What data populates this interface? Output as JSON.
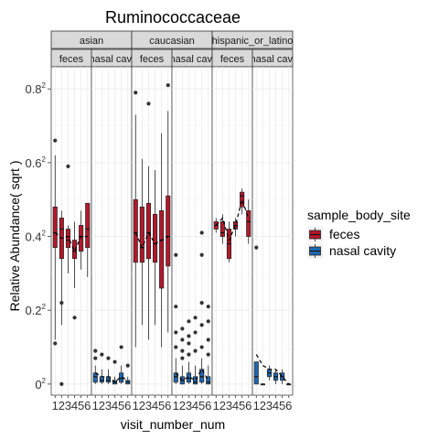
{
  "chart_data": {
    "type": "box",
    "title": "Ruminococcaceae",
    "xlabel": "visit_number_num",
    "ylabel": "Relative Abundance( sqrt )",
    "y_ticks": [
      {
        "value": 0.0,
        "base": "0",
        "exp": "2"
      },
      {
        "value": 0.2,
        "base": "0.2",
        "exp": "2"
      },
      {
        "value": 0.4,
        "base": "0.4",
        "exp": "2"
      },
      {
        "value": 0.6,
        "base": "0.6",
        "exp": "2"
      },
      {
        "value": 0.8,
        "base": "0.8",
        "exp": "2"
      }
    ],
    "ylim": [
      -0.03,
      0.86
    ],
    "x_categories": [
      "1",
      "2",
      "3",
      "4",
      "5",
      "6"
    ],
    "legend": {
      "title": "sample_body_site",
      "placement": "right",
      "items": [
        {
          "label": "feces",
          "color": "#b2182b"
        },
        {
          "label": "nasal cavity",
          "color": "#2166ac"
        }
      ]
    },
    "facet_rows": [
      "asian",
      "caucasian",
      "hispanic_or_latino"
    ],
    "facet_cols_display": [
      "feces",
      "nasal cavity"
    ],
    "facets": [
      {
        "ethnicity": "asian",
        "ethnicity_label": "asian",
        "panels": [
          {
            "site": "feces",
            "label": "feces",
            "color": "#b2182b",
            "trend": [
              0.41,
              0.395,
              0.4,
              0.36,
              0.4,
              0.4
            ],
            "boxes": [
              {
                "visit": 1,
                "min": 0.12,
                "q1": 0.37,
                "median": 0.41,
                "q3": 0.48,
                "max": 0.62,
                "outliers": [
                  0.66,
                  0.11
                ]
              },
              {
                "visit": 2,
                "min": 0.16,
                "q1": 0.34,
                "median": 0.42,
                "q3": 0.45,
                "max": 0.47,
                "outliers": [
                  0.22,
                  0.0
                ]
              },
              {
                "visit": 3,
                "min": 0.3,
                "q1": 0.37,
                "median": 0.39,
                "q3": 0.42,
                "max": 0.43,
                "outliers": [
                  0.59
                ]
              },
              {
                "visit": 4,
                "min": 0.26,
                "q1": 0.34,
                "median": 0.36,
                "q3": 0.39,
                "max": 0.44,
                "outliers": [
                  0.18
                ]
              },
              {
                "visit": 5,
                "min": 0.31,
                "q1": 0.36,
                "median": 0.4,
                "q3": 0.43,
                "max": 0.47,
                "outliers": []
              },
              {
                "visit": 6,
                "min": 0.29,
                "q1": 0.37,
                "median": 0.42,
                "q3": 0.49,
                "max": 0.49,
                "outliers": []
              }
            ]
          },
          {
            "site": "nasal_cavity",
            "label": "nasal cavi",
            "color": "#2166ac",
            "trend": [
              0.03,
              0.02,
              0.02,
              0.005,
              0.02,
              0.01
            ],
            "boxes": [
              {
                "visit": 1,
                "min": 0.0,
                "q1": 0.005,
                "median": 0.02,
                "q3": 0.03,
                "max": 0.05,
                "outliers": [
                  0.09,
                  0.07
                ]
              },
              {
                "visit": 2,
                "min": 0.0,
                "q1": 0.005,
                "median": 0.01,
                "q3": 0.02,
                "max": 0.04,
                "outliers": [
                  0.08
                ]
              },
              {
                "visit": 3,
                "min": 0.0,
                "q1": 0.005,
                "median": 0.01,
                "q3": 0.02,
                "max": 0.04,
                "outliers": [
                  0.07
                ]
              },
              {
                "visit": 4,
                "min": 0.0,
                "q1": 0.0,
                "median": 0.005,
                "q3": 0.01,
                "max": 0.02,
                "outliers": [
                  0.06
                ]
              },
              {
                "visit": 5,
                "min": 0.0,
                "q1": 0.005,
                "median": 0.015,
                "q3": 0.03,
                "max": 0.05,
                "outliers": [
                  0.1
                ]
              },
              {
                "visit": 6,
                "min": 0.0,
                "q1": 0.0,
                "median": 0.005,
                "q3": 0.01,
                "max": 0.02,
                "outliers": [
                  0.05
                ]
              }
            ]
          }
        ]
      },
      {
        "ethnicity": "caucasian",
        "ethnicity_label": "caucasian",
        "panels": [
          {
            "site": "feces",
            "label": "feces",
            "color": "#b2182b",
            "trend": [
              0.41,
              0.37,
              0.41,
              0.38,
              0.39,
              0.4
            ],
            "boxes": [
              {
                "visit": 1,
                "min": 0.1,
                "q1": 0.33,
                "median": 0.41,
                "q3": 0.5,
                "max": 0.73,
                "outliers": [
                  0.79
                ]
              },
              {
                "visit": 2,
                "min": 0.16,
                "q1": 0.33,
                "median": 0.37,
                "q3": 0.48,
                "max": 0.61,
                "outliers": []
              },
              {
                "visit": 3,
                "min": 0.12,
                "q1": 0.34,
                "median": 0.41,
                "q3": 0.49,
                "max": 0.59,
                "outliers": [
                  0.76
                ]
              },
              {
                "visit": 4,
                "min": 0.16,
                "q1": 0.33,
                "median": 0.38,
                "q3": 0.46,
                "max": 0.58,
                "outliers": []
              },
              {
                "visit": 5,
                "min": 0.1,
                "q1": 0.26,
                "median": 0.39,
                "q3": 0.47,
                "max": 0.68,
                "outliers": []
              },
              {
                "visit": 6,
                "min": 0.14,
                "q1": 0.32,
                "median": 0.4,
                "q3": 0.51,
                "max": 0.74,
                "outliers": [
                  0.81
                ]
              }
            ]
          },
          {
            "site": "nasal_cavity",
            "label": "nasal cavi",
            "color": "#2166ac",
            "trend": [
              0.03,
              0.01,
              0.02,
              0.01,
              0.04,
              0.01
            ],
            "boxes": [
              {
                "visit": 1,
                "min": 0.0,
                "q1": 0.005,
                "median": 0.02,
                "q3": 0.03,
                "max": 0.07,
                "outliers": [
                  0.1,
                  0.14,
                  0.21,
                  0.35
                ]
              },
              {
                "visit": 2,
                "min": 0.0,
                "q1": 0.0,
                "median": 0.01,
                "q3": 0.02,
                "max": 0.05,
                "outliers": [
                  0.07,
                  0.09,
                  0.12,
                  0.15
                ]
              },
              {
                "visit": 3,
                "min": 0.0,
                "q1": 0.005,
                "median": 0.015,
                "q3": 0.03,
                "max": 0.06,
                "outliers": [
                  0.08,
                  0.11,
                  0.13,
                  0.17
                ]
              },
              {
                "visit": 4,
                "min": 0.0,
                "q1": 0.0,
                "median": 0.005,
                "q3": 0.02,
                "max": 0.05,
                "outliers": [
                  0.09,
                  0.14,
                  0.18
                ]
              },
              {
                "visit": 5,
                "min": 0.0,
                "q1": 0.005,
                "median": 0.02,
                "q3": 0.04,
                "max": 0.07,
                "outliers": [
                  0.1,
                  0.16,
                  0.22,
                  0.35,
                  0.41
                ]
              },
              {
                "visit": 6,
                "min": 0.0,
                "q1": 0.0,
                "median": 0.005,
                "q3": 0.02,
                "max": 0.05,
                "outliers": [
                  0.08,
                  0.12,
                  0.17,
                  0.21
                ]
              }
            ]
          }
        ]
      },
      {
        "ethnicity": "hispanic_or_latino",
        "ethnicity_label": "hispanic_or_latino",
        "panels": [
          {
            "site": "feces",
            "label": "feces",
            "color": "#b2182b",
            "trend": [
              0.43,
              0.45,
              0.39,
              0.43,
              0.5,
              0.45
            ],
            "boxes": [
              {
                "visit": 1,
                "min": 0.41,
                "q1": 0.42,
                "median": 0.43,
                "q3": 0.44,
                "max": 0.45,
                "outliers": []
              },
              {
                "visit": 2,
                "min": 0.38,
                "q1": 0.4,
                "median": 0.41,
                "q3": 0.44,
                "max": 0.46,
                "outliers": []
              },
              {
                "visit": 3,
                "min": 0.33,
                "q1": 0.34,
                "median": 0.38,
                "q3": 0.42,
                "max": 0.44,
                "outliers": []
              },
              {
                "visit": 4,
                "min": 0.4,
                "q1": 0.42,
                "median": 0.43,
                "q3": 0.44,
                "max": 0.45,
                "outliers": []
              },
              {
                "visit": 5,
                "min": 0.46,
                "q1": 0.48,
                "median": 0.51,
                "q3": 0.52,
                "max": 0.53,
                "outliers": []
              },
              {
                "visit": 6,
                "min": 0.38,
                "q1": 0.4,
                "median": 0.44,
                "q3": 0.47,
                "max": 0.5,
                "outliers": []
              }
            ]
          },
          {
            "site": "nasal_cavity",
            "label": "nasal cavi",
            "color": "#2166ac",
            "trend": [
              0.08,
              0.05,
              0.04,
              0.04,
              0.02,
              0.0
            ],
            "boxes": [
              {
                "visit": 1,
                "min": 0.0,
                "q1": 0.0,
                "median": 0.02,
                "q3": 0.06,
                "max": 0.06,
                "outliers": [
                  0.37
                ]
              },
              {
                "visit": 2,
                "min": 0.0,
                "q1": 0.0,
                "median": 0.0,
                "q3": 0.0,
                "max": 0.0,
                "outliers": []
              },
              {
                "visit": 3,
                "min": 0.01,
                "q1": 0.02,
                "median": 0.03,
                "q3": 0.04,
                "max": 0.05,
                "outliers": []
              },
              {
                "visit": 4,
                "min": 0.0,
                "q1": 0.01,
                "median": 0.02,
                "q3": 0.03,
                "max": 0.04,
                "outliers": []
              },
              {
                "visit": 5,
                "min": 0.0,
                "q1": 0.01,
                "median": 0.02,
                "q3": 0.03,
                "max": 0.04,
                "outliers": []
              },
              {
                "visit": 6,
                "min": 0.0,
                "q1": 0.0,
                "median": 0.0,
                "q3": 0.0,
                "max": 0.0,
                "outliers": []
              }
            ]
          }
        ]
      }
    ]
  }
}
